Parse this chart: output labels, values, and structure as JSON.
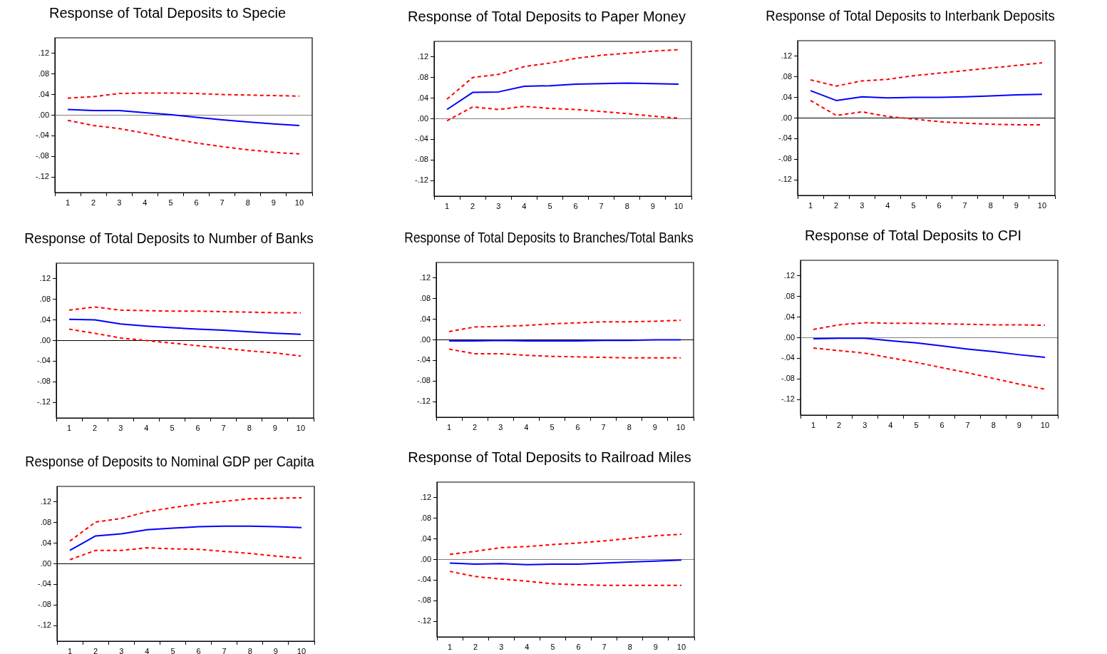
{
  "chart_data": [
    {
      "type": "line",
      "title": "Response of Total Deposits to Specie",
      "categories": [
        "1",
        "2",
        "3",
        "4",
        "5",
        "6",
        "7",
        "8",
        "9",
        "10"
      ],
      "ylim": [
        -0.15,
        0.15
      ],
      "yticks": [
        {
          "value": -0.12,
          "label": "-.12"
        },
        {
          "value": -0.08,
          "label": "-.08"
        },
        {
          "value": -0.04,
          "label": "-.04"
        },
        {
          "value": 0,
          "label": ".00"
        },
        {
          "value": 0.04,
          "label": ".04"
        },
        {
          "value": 0.08,
          "label": ".08"
        },
        {
          "value": 0.12,
          "label": ".12"
        }
      ],
      "grid": false,
      "legend": false,
      "marker": "none",
      "ref_lines": [
        {
          "axis": "y",
          "value": 0,
          "color": "#808080"
        }
      ],
      "series": [
        {
          "color": "#0000ff",
          "line_style": "solid",
          "values": [
            0.011,
            0.009,
            0.009,
            0.005,
            0.001,
            -0.004,
            -0.009,
            -0.013,
            -0.017,
            -0.02
          ]
        },
        {
          "color": "#ff0000",
          "line_style": "dashed",
          "values": [
            0.033,
            0.036,
            0.042,
            0.043,
            0.043,
            0.042,
            0.04,
            0.039,
            0.038,
            0.037
          ]
        },
        {
          "color": "#ff0000",
          "line_style": "dashed",
          "values": [
            -0.01,
            -0.02,
            -0.026,
            -0.035,
            -0.045,
            -0.054,
            -0.061,
            -0.067,
            -0.072,
            -0.075
          ]
        }
      ]
    },
    {
      "type": "line",
      "title": "Response of Total Deposits to Paper Money",
      "categories": [
        "1",
        "2",
        "3",
        "4",
        "5",
        "6",
        "7",
        "8",
        "9",
        "10"
      ],
      "ylim": [
        -0.15,
        0.15
      ],
      "yticks": [
        {
          "value": -0.12,
          "label": "-.12"
        },
        {
          "value": -0.08,
          "label": "-.08"
        },
        {
          "value": -0.04,
          "label": "-.04"
        },
        {
          "value": 0,
          "label": ".00"
        },
        {
          "value": 0.04,
          "label": ".04"
        },
        {
          "value": 0.08,
          "label": ".08"
        },
        {
          "value": 0.12,
          "label": ".12"
        }
      ],
      "grid": false,
      "legend": false,
      "marker": "none",
      "ref_lines": [
        {
          "axis": "y",
          "value": 0,
          "color": "#808080"
        }
      ],
      "series": [
        {
          "color": "#0000ff",
          "line_style": "solid",
          "values": [
            0.018,
            0.051,
            0.052,
            0.063,
            0.064,
            0.067,
            0.068,
            0.069,
            0.068,
            0.067
          ]
        },
        {
          "color": "#ff0000",
          "line_style": "dashed",
          "values": [
            0.038,
            0.08,
            0.086,
            0.101,
            0.108,
            0.117,
            0.123,
            0.127,
            0.131,
            0.134
          ]
        },
        {
          "color": "#ff0000",
          "line_style": "dashed",
          "values": [
            -0.004,
            0.023,
            0.018,
            0.024,
            0.02,
            0.018,
            0.014,
            0.01,
            0.005,
            0.001
          ]
        }
      ]
    },
    {
      "type": "line",
      "title": "Response of Total Deposits to Interbank Deposits",
      "categories": [
        "1",
        "2",
        "3",
        "4",
        "5",
        "6",
        "7",
        "8",
        "9",
        "10"
      ],
      "ylim": [
        -0.15,
        0.15
      ],
      "yticks": [
        {
          "value": -0.12,
          "label": "-.12"
        },
        {
          "value": -0.08,
          "label": "-.08"
        },
        {
          "value": -0.04,
          "label": "-.04"
        },
        {
          "value": 0,
          "label": ".00"
        },
        {
          "value": 0.04,
          "label": ".04"
        },
        {
          "value": 0.08,
          "label": ".08"
        },
        {
          "value": 0.12,
          "label": ".12"
        }
      ],
      "grid": false,
      "legend": false,
      "marker": "none",
      "ref_lines": [
        {
          "axis": "y",
          "value": 0,
          "color": "#000000"
        }
      ],
      "series": [
        {
          "color": "#0000ff",
          "line_style": "solid",
          "values": [
            0.053,
            0.034,
            0.041,
            0.039,
            0.04,
            0.04,
            0.041,
            0.043,
            0.045,
            0.046
          ]
        },
        {
          "color": "#ff0000",
          "line_style": "dashed",
          "values": [
            0.074,
            0.062,
            0.072,
            0.075,
            0.082,
            0.087,
            0.092,
            0.097,
            0.102,
            0.107
          ]
        },
        {
          "color": "#ff0000",
          "line_style": "dashed",
          "values": [
            0.034,
            0.005,
            0.012,
            0.003,
            -0.002,
            -0.007,
            -0.01,
            -0.012,
            -0.013,
            -0.013
          ]
        }
      ]
    },
    {
      "type": "line",
      "title": "Response of Total Deposits to Number of Banks",
      "categories": [
        "1",
        "2",
        "3",
        "4",
        "5",
        "6",
        "7",
        "8",
        "9",
        "10"
      ],
      "ylim": [
        -0.15,
        0.15
      ],
      "yticks": [
        {
          "value": -0.12,
          "label": "-.12"
        },
        {
          "value": -0.08,
          "label": "-.08"
        },
        {
          "value": -0.04,
          "label": "-.04"
        },
        {
          "value": 0,
          "label": ".00"
        },
        {
          "value": 0.04,
          "label": ".04"
        },
        {
          "value": 0.08,
          "label": ".08"
        },
        {
          "value": 0.12,
          "label": ".12"
        }
      ],
      "grid": false,
      "legend": false,
      "marker": "none",
      "ref_lines": [
        {
          "axis": "y",
          "value": 0,
          "color": "#000000"
        }
      ],
      "series": [
        {
          "color": "#0000ff",
          "line_style": "solid",
          "values": [
            0.041,
            0.04,
            0.032,
            0.028,
            0.025,
            0.022,
            0.02,
            0.017,
            0.014,
            0.012
          ]
        },
        {
          "color": "#ff0000",
          "line_style": "dashed",
          "values": [
            0.059,
            0.065,
            0.059,
            0.058,
            0.057,
            0.057,
            0.056,
            0.055,
            0.054,
            0.054
          ]
        },
        {
          "color": "#ff0000",
          "line_style": "dashed",
          "values": [
            0.022,
            0.014,
            0.005,
            0,
            -0.005,
            -0.01,
            -0.015,
            -0.02,
            -0.024,
            -0.03
          ]
        }
      ]
    },
    {
      "type": "line",
      "title": "Response of Total Deposits to Branches/Total Banks",
      "categories": [
        "1",
        "2",
        "3",
        "4",
        "5",
        "6",
        "7",
        "8",
        "9",
        "10"
      ],
      "ylim": [
        -0.15,
        0.15
      ],
      "yticks": [
        {
          "value": -0.12,
          "label": "-.12"
        },
        {
          "value": -0.08,
          "label": "-.08"
        },
        {
          "value": -0.04,
          "label": "-.04"
        },
        {
          "value": 0,
          "label": ".00"
        },
        {
          "value": 0.04,
          "label": ".04"
        },
        {
          "value": 0.08,
          "label": ".08"
        },
        {
          "value": 0.12,
          "label": ".12"
        }
      ],
      "grid": false,
      "legend": false,
      "marker": "none",
      "ref_lines": [
        {
          "axis": "y",
          "value": 0,
          "color": "#000000"
        }
      ],
      "series": [
        {
          "color": "#0000ff",
          "line_style": "solid",
          "values": [
            -0.002,
            -0.002,
            -0.001,
            -0.002,
            -0.002,
            -0.002,
            -0.001,
            -0.001,
            0,
            0
          ]
        },
        {
          "color": "#ff0000",
          "line_style": "dashed",
          "values": [
            0.016,
            0.025,
            0.026,
            0.028,
            0.031,
            0.033,
            0.035,
            0.035,
            0.036,
            0.038
          ]
        },
        {
          "color": "#ff0000",
          "line_style": "dashed",
          "values": [
            -0.018,
            -0.027,
            -0.027,
            -0.03,
            -0.032,
            -0.033,
            -0.034,
            -0.035,
            -0.035,
            -0.035
          ]
        }
      ]
    },
    {
      "type": "line",
      "title": "Response of Total Deposits to CPI",
      "categories": [
        "1",
        "2",
        "3",
        "4",
        "5",
        "6",
        "7",
        "8",
        "9",
        "10"
      ],
      "ylim": [
        -0.15,
        0.15
      ],
      "yticks": [
        {
          "value": -0.12,
          "label": "-.12"
        },
        {
          "value": -0.08,
          "label": "-.08"
        },
        {
          "value": -0.04,
          "label": "-.04"
        },
        {
          "value": 0,
          "label": ".00"
        },
        {
          "value": 0.04,
          "label": ".04"
        },
        {
          "value": 0.08,
          "label": ".08"
        },
        {
          "value": 0.12,
          "label": ".12"
        }
      ],
      "grid": false,
      "legend": false,
      "marker": "none",
      "ref_lines": [
        {
          "axis": "y",
          "value": 0,
          "color": "#808080"
        }
      ],
      "series": [
        {
          "color": "#0000ff",
          "line_style": "solid",
          "values": [
            -0.002,
            -0.001,
            -0.001,
            -0.006,
            -0.01,
            -0.016,
            -0.022,
            -0.027,
            -0.033,
            -0.038
          ]
        },
        {
          "color": "#ff0000",
          "line_style": "dashed",
          "values": [
            0.016,
            0.025,
            0.029,
            0.028,
            0.028,
            0.027,
            0.026,
            0.025,
            0.025,
            0.024
          ]
        },
        {
          "color": "#ff0000",
          "line_style": "dashed",
          "values": [
            -0.02,
            -0.025,
            -0.03,
            -0.039,
            -0.048,
            -0.058,
            -0.068,
            -0.079,
            -0.09,
            -0.1
          ]
        }
      ]
    },
    {
      "type": "line",
      "title": "Response of Deposits to Nominal GDP per Capita",
      "categories": [
        "1",
        "2",
        "3",
        "4",
        "5",
        "6",
        "7",
        "8",
        "9",
        "10"
      ],
      "ylim": [
        -0.15,
        0.15
      ],
      "yticks": [
        {
          "value": -0.12,
          "label": "-.12"
        },
        {
          "value": -0.08,
          "label": "-.08"
        },
        {
          "value": -0.04,
          "label": "-.04"
        },
        {
          "value": 0,
          "label": ".00"
        },
        {
          "value": 0.04,
          "label": ".04"
        },
        {
          "value": 0.08,
          "label": ".08"
        },
        {
          "value": 0.12,
          "label": ".12"
        }
      ],
      "grid": false,
      "legend": false,
      "marker": "none",
      "ref_lines": [
        {
          "axis": "y",
          "value": 0,
          "color": "#000000"
        }
      ],
      "series": [
        {
          "color": "#0000ff",
          "line_style": "solid",
          "values": [
            0.026,
            0.054,
            0.058,
            0.066,
            0.069,
            0.072,
            0.073,
            0.073,
            0.072,
            0.07
          ]
        },
        {
          "color": "#ff0000",
          "line_style": "dashed",
          "values": [
            0.044,
            0.081,
            0.088,
            0.101,
            0.109,
            0.116,
            0.121,
            0.126,
            0.127,
            0.128
          ]
        },
        {
          "color": "#ff0000",
          "line_style": "dashed",
          "values": [
            0.008,
            0.026,
            0.026,
            0.031,
            0.029,
            0.028,
            0.024,
            0.02,
            0.015,
            0.011
          ]
        }
      ]
    },
    {
      "type": "line",
      "title": "Response of Total Deposits to Railroad Miles",
      "categories": [
        "1",
        "2",
        "3",
        "4",
        "5",
        "6",
        "7",
        "8",
        "9",
        "10"
      ],
      "ylim": [
        -0.15,
        0.15
      ],
      "yticks": [
        {
          "value": -0.12,
          "label": "-.12"
        },
        {
          "value": -0.08,
          "label": "-.08"
        },
        {
          "value": -0.04,
          "label": "-.04"
        },
        {
          "value": 0,
          "label": ".00"
        },
        {
          "value": 0.04,
          "label": ".04"
        },
        {
          "value": 0.08,
          "label": ".08"
        },
        {
          "value": 0.12,
          "label": ".12"
        }
      ],
      "grid": false,
      "legend": false,
      "marker": "none",
      "ref_lines": [
        {
          "axis": "y",
          "value": 0,
          "color": "#808080"
        }
      ],
      "series": [
        {
          "color": "#0000ff",
          "line_style": "solid",
          "values": [
            -0.007,
            -0.009,
            -0.008,
            -0.01,
            -0.009,
            -0.009,
            -0.007,
            -0.005,
            -0.003,
            -0.001
          ]
        },
        {
          "color": "#ff0000",
          "line_style": "dashed",
          "values": [
            0.01,
            0.016,
            0.023,
            0.025,
            0.029,
            0.032,
            0.036,
            0.041,
            0.046,
            0.049
          ]
        },
        {
          "color": "#ff0000",
          "line_style": "dashed",
          "values": [
            -0.023,
            -0.033,
            -0.038,
            -0.042,
            -0.047,
            -0.049,
            -0.05,
            -0.05,
            -0.05,
            -0.05
          ]
        }
      ]
    }
  ]
}
